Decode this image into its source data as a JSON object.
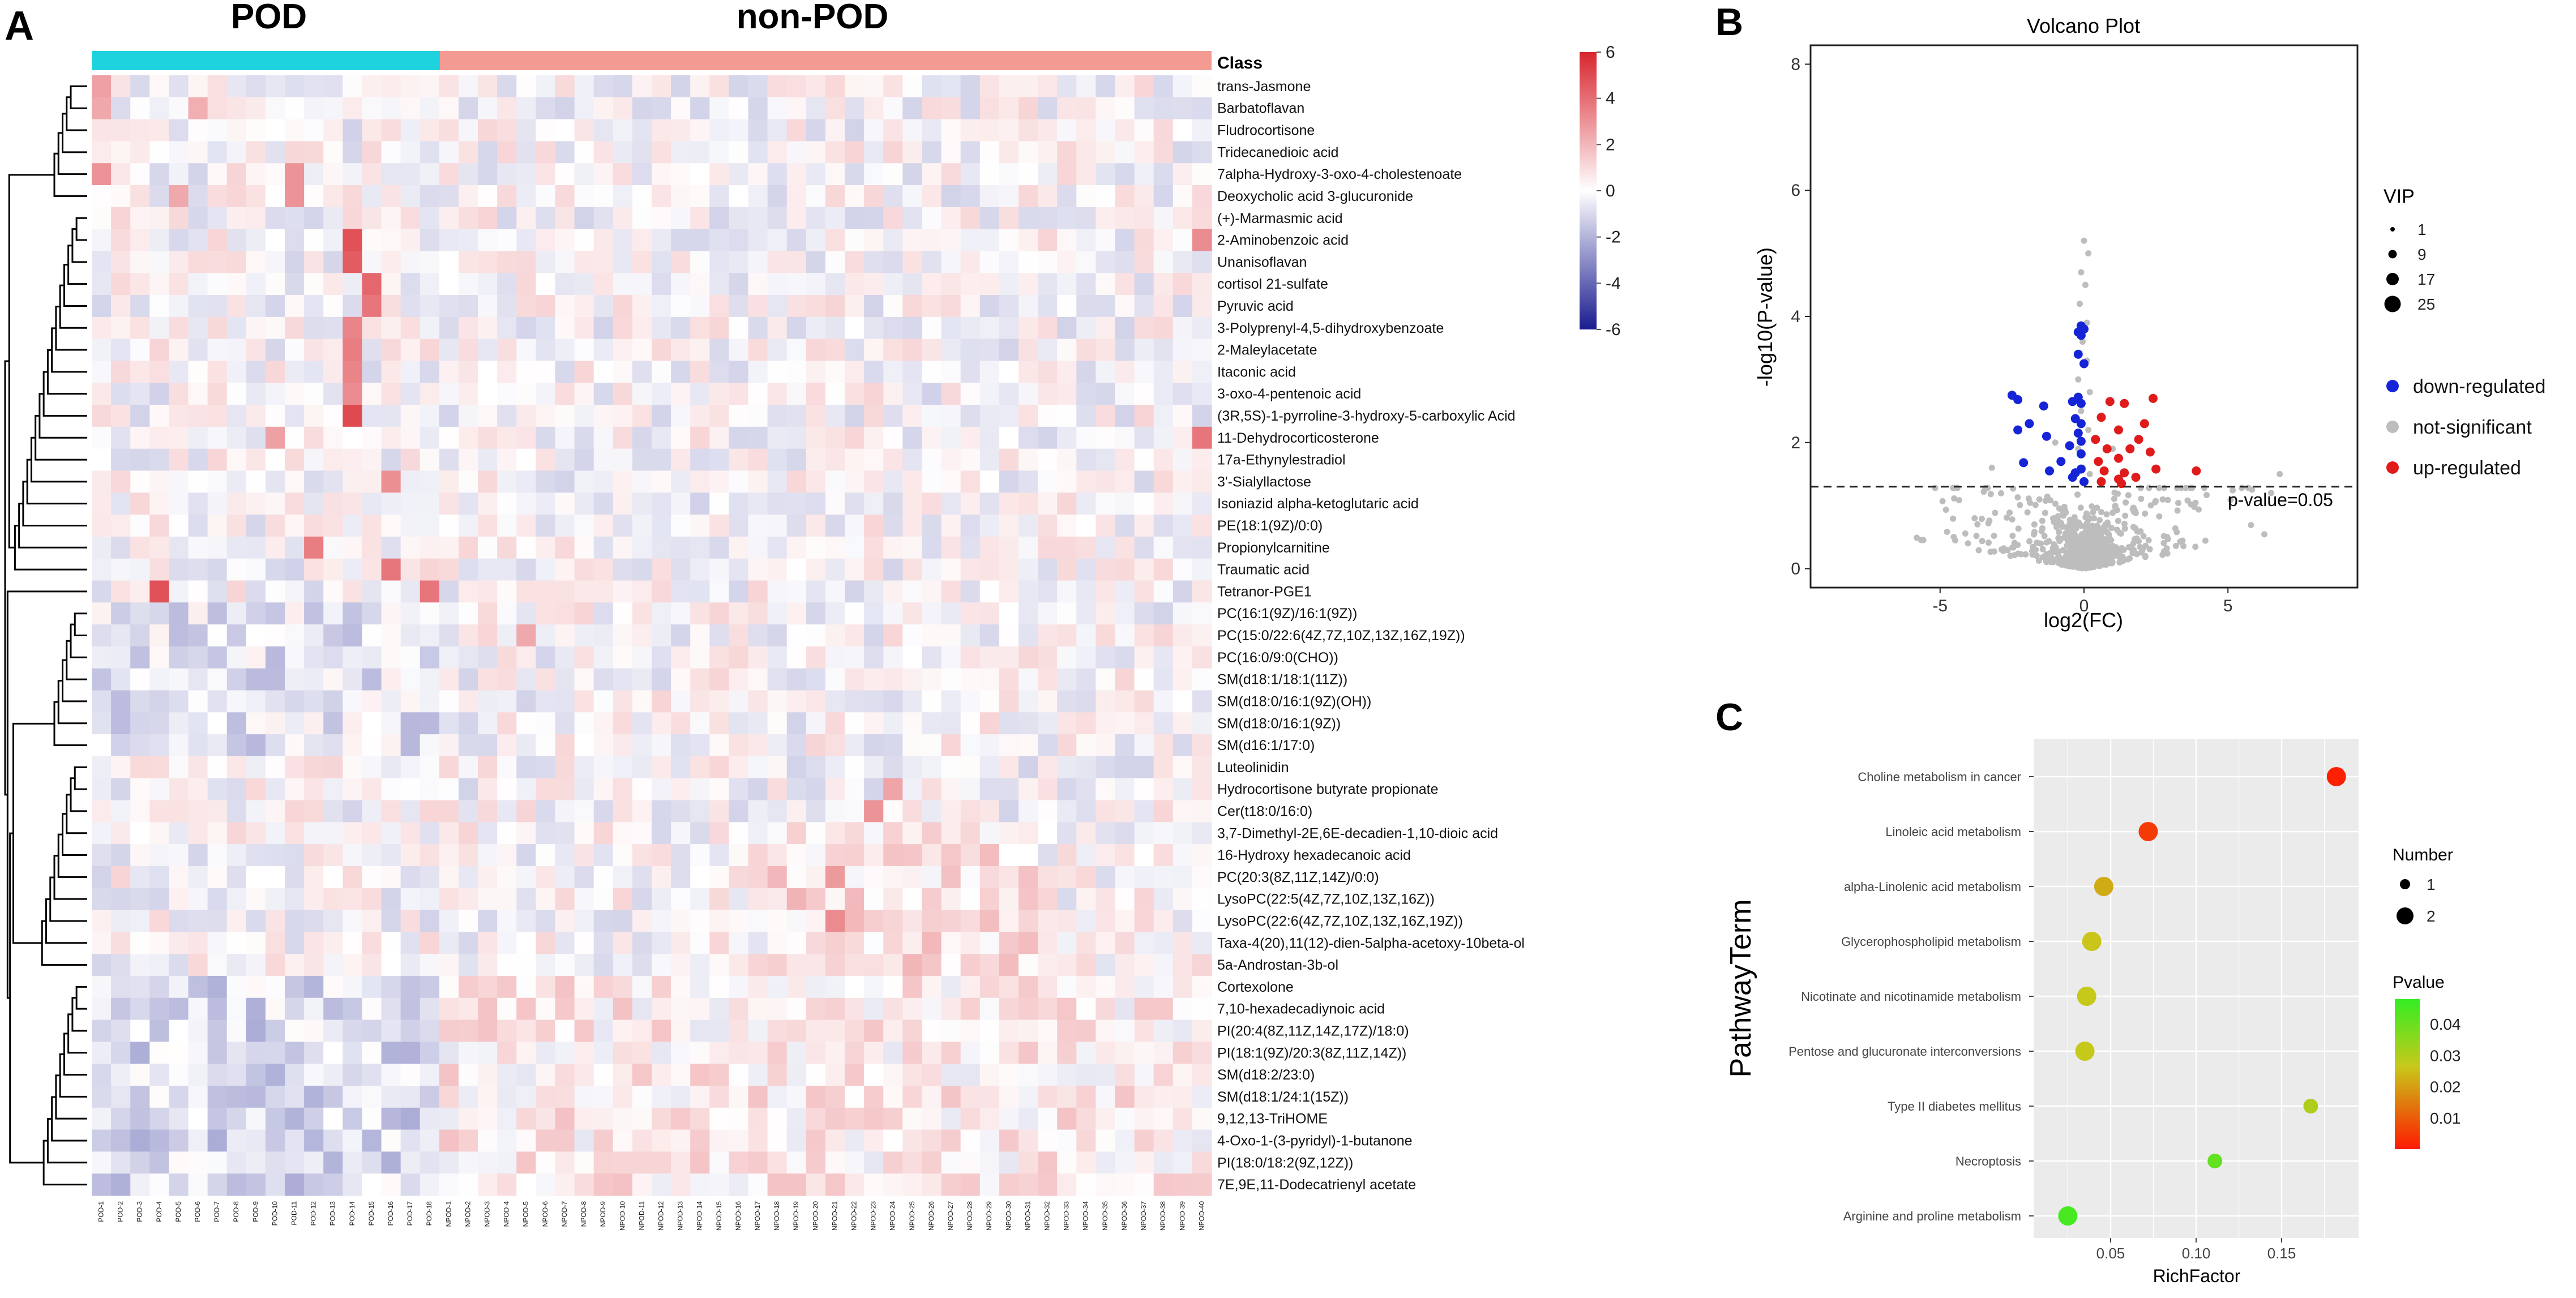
{
  "colors": {
    "pod": "#1fd3de",
    "non_pod": "#f39b93",
    "heat_low": "#1a1c8f",
    "heat_mid": "#ffffff",
    "heat_high": "#d8262e",
    "down": "#1624d8",
    "up": "#e01b1b",
    "ns": "#bdbdbd",
    "panel_bg": "#ebebeb",
    "grid": "#ffffff"
  },
  "panels": {
    "a": "A",
    "b": "B",
    "c": "C"
  },
  "chart_data": [
    {
      "type": "heatmap",
      "title": "",
      "class_label": "Class",
      "groups": [
        {
          "name": "POD",
          "count": 18
        },
        {
          "name": "non-POD",
          "count": 40
        }
      ],
      "samples": [
        "POD-1",
        "POD-2",
        "POD-3",
        "POD-4",
        "POD-5",
        "POD-6",
        "POD-7",
        "POD-8",
        "POD-9",
        "POD-10",
        "POD-11",
        "POD-12",
        "POD-13",
        "POD-14",
        "POD-15",
        "POD-16",
        "POD-17",
        "POD-18",
        "NPOD-1",
        "NPOD-2",
        "NPOD-3",
        "NPOD-4",
        "NPOD-5",
        "NPOD-6",
        "NPOD-7",
        "NPOD-8",
        "NPOD-9",
        "NPOD-10",
        "NPOD-11",
        "NPOD-12",
        "NPOD-13",
        "NPOD-14",
        "NPOD-15",
        "NPOD-16",
        "NPOD-17",
        "NPOD-18",
        "NPOD-19",
        "NPOD-20",
        "NPOD-21",
        "NPOD-22",
        "NPOD-23",
        "NPOD-24",
        "NPOD-25",
        "NPOD-26",
        "NPOD-27",
        "NPOD-28",
        "NPOD-29",
        "NPOD-30",
        "NPOD-31",
        "NPOD-32",
        "NPOD-33",
        "NPOD-34",
        "NPOD-35",
        "NPOD-36",
        "NPOD-37",
        "NPOD-38",
        "NPOD-39",
        "NPOD-40"
      ],
      "metabolites": [
        "trans-Jasmone",
        "Barbatoflavan",
        "Fludrocortisone",
        "Tridecanedioic acid",
        "7alpha-Hydroxy-3-oxo-4-cholestenoate",
        "Deoxycholic acid 3-glucuronide",
        "(+)-Marmasmic acid",
        "2-Aminobenzoic acid",
        "Unanisoflavan",
        "cortisol 21-sulfate",
        "Pyruvic acid",
        "3-Polyprenyl-4,5-dihydroxybenzoate",
        "2-Maleylacetate",
        "Itaconic acid",
        "3-oxo-4-pentenoic acid",
        "(3R,5S)-1-pyrroline-3-hydroxy-5-carboxylic Acid",
        "11-Dehydrocorticosterone",
        "17a-Ethynylestradiol",
        "3'-Sialyllactose",
        "Isoniazid alpha-ketoglutaric acid",
        "PE(18:1(9Z)/0:0)",
        "Propionylcarnitine",
        "Traumatic acid",
        "Tetranor-PGE1",
        "PC(16:1(9Z)/16:1(9Z))",
        "PC(15:0/22:6(4Z,7Z,10Z,13Z,16Z,19Z))",
        "PC(16:0/9:0(CHO))",
        "SM(d18:1/18:1(11Z))",
        "SM(d18:0/16:1(9Z)(OH))",
        "SM(d18:0/16:1(9Z))",
        "SM(d16:1/17:0)",
        "Luteolinidin",
        "Hydrocortisone butyrate propionate",
        "Cer(t18:0/16:0)",
        "3,7-Dimethyl-2E,6E-decadien-1,10-dioic acid",
        "16-Hydroxy hexadecanoic acid",
        "PC(20:3(8Z,11Z,14Z)/0:0)",
        "LysoPC(22:5(4Z,7Z,10Z,13Z,16Z))",
        "LysoPC(22:6(4Z,7Z,10Z,13Z,16Z,19Z))",
        "Taxa-4(20),11(12)-dien-5alpha-acetoxy-10beta-ol",
        "5a-Androstan-3b-ol",
        "Cortexolone",
        "7,10-hexadecadiynoic acid",
        "PI(20:4(8Z,11Z,14Z,17Z)/18:0)",
        "PI(18:1(9Z)/20:3(8Z,11Z,14Z))",
        "SM(d18:2/23:0)",
        "SM(d18:1/24:1(15Z))",
        "9,12,13-TriHOME",
        "4-Oxo-1-(3-pyridyl)-1-butanone",
        "PI(18:0/18:2(9Z,12Z))",
        "7E,9E,11-Dodecatrienyl acetate"
      ],
      "colorbar": {
        "ticks": [
          "6",
          "4",
          "2",
          "0",
          "-2",
          "-4",
          "-6"
        ],
        "range": [
          -6,
          6
        ]
      }
    },
    {
      "type": "scatter",
      "title": "Volcano Plot",
      "xlabel": "log2(FC)",
      "ylabel": "-log10(P-value)",
      "xlim": [
        -9.5,
        9.5
      ],
      "ylim": [
        -0.3,
        8.3
      ],
      "xticks": [
        "-5",
        "0",
        "5"
      ],
      "yticks": [
        "0",
        "2",
        "4",
        "6",
        "8"
      ],
      "threshold": {
        "value": 1.3,
        "label": "p-value=0.05"
      },
      "legend_size_title": "VIP",
      "legend_sizes": [
        "1",
        "9",
        "17",
        "25"
      ],
      "legend_groups": [
        "down-regulated",
        "not-significant",
        "up-regulated"
      ],
      "down_points": [
        [
          -0.1,
          3.85
        ],
        [
          0.0,
          3.8
        ],
        [
          -0.2,
          3.75
        ],
        [
          -0.1,
          3.7
        ],
        [
          -0.2,
          3.4
        ],
        [
          0.0,
          3.25
        ],
        [
          -2.5,
          2.75
        ],
        [
          -2.3,
          2.68
        ],
        [
          -1.4,
          2.58
        ],
        [
          -0.4,
          2.65
        ],
        [
          -0.2,
          2.72
        ],
        [
          -0.1,
          2.62
        ],
        [
          -0.3,
          2.38
        ],
        [
          -0.1,
          2.3
        ],
        [
          -2.3,
          2.2
        ],
        [
          -1.9,
          2.3
        ],
        [
          -1.3,
          2.1
        ],
        [
          -0.2,
          2.15
        ],
        [
          -0.1,
          2.02
        ],
        [
          -0.5,
          1.95
        ],
        [
          -0.1,
          1.82
        ],
        [
          -2.1,
          1.68
        ],
        [
          -0.8,
          1.7
        ],
        [
          -1.2,
          1.55
        ],
        [
          -0.3,
          1.52
        ],
        [
          -0.1,
          1.58
        ],
        [
          -0.4,
          1.45
        ],
        [
          0.0,
          1.38
        ]
      ],
      "up_points": [
        [
          0.9,
          2.65
        ],
        [
          1.4,
          2.62
        ],
        [
          2.4,
          2.7
        ],
        [
          0.6,
          2.4
        ],
        [
          1.2,
          2.2
        ],
        [
          2.1,
          2.3
        ],
        [
          0.4,
          2.05
        ],
        [
          1.9,
          2.05
        ],
        [
          0.8,
          1.9
        ],
        [
          1.6,
          1.9
        ],
        [
          1.2,
          1.75
        ],
        [
          2.3,
          1.85
        ],
        [
          0.5,
          1.7
        ],
        [
          0.7,
          1.55
        ],
        [
          1.4,
          1.52
        ],
        [
          1.8,
          1.45
        ],
        [
          2.5,
          1.58
        ],
        [
          1.2,
          1.42
        ],
        [
          0.6,
          1.38
        ],
        [
          3.9,
          1.55
        ],
        [
          1.3,
          1.35
        ]
      ]
    },
    {
      "type": "scatter",
      "subtype": "bubble",
      "xlabel": "RichFactor",
      "ylabel": "PathwayTerm",
      "xlim": [
        0.005,
        0.195
      ],
      "xticks": [
        "0.05",
        "0.10",
        "0.15"
      ],
      "categories": [
        "Choline metabolism in cancer",
        "Linoleic acid metabolism",
        "alpha-Linolenic acid metabolism",
        "Glycerophospholipid metabolism",
        "Nicotinate and nicotinamide metabolism",
        "Pentose and glucuronate interconversions",
        "Type II diabetes mellitus",
        "Necroptosis",
        "Arginine and proline metabolism"
      ],
      "rich_factor": [
        0.182,
        0.072,
        0.046,
        0.039,
        0.036,
        0.035,
        0.167,
        0.111,
        0.025
      ],
      "number": [
        2,
        2,
        2,
        2,
        2,
        2,
        1,
        1,
        2
      ],
      "pvalue": [
        0.001,
        0.005,
        0.022,
        0.026,
        0.027,
        0.027,
        0.03,
        0.041,
        0.045
      ],
      "legend_number_title": "Number",
      "legend_numbers": [
        "1",
        "2"
      ],
      "legend_pvalue_title": "Pvalue",
      "pvalue_ticks": [
        "0.04",
        "0.03",
        "0.02",
        "0.01"
      ],
      "pvalue_range": [
        0.0,
        0.048
      ]
    }
  ]
}
